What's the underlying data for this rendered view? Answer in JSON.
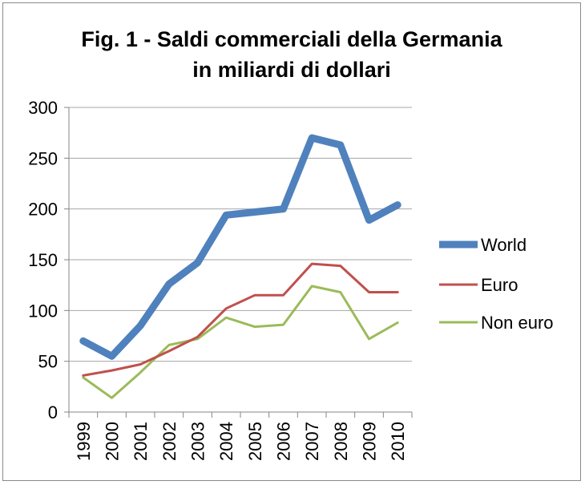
{
  "chart_data": {
    "type": "line",
    "title_lines": [
      "Fig. 1 - Saldi commerciali della Germania",
      "in miliardi di dollari"
    ],
    "categories": [
      "1999",
      "2000",
      "2001",
      "2002",
      "2003",
      "2004",
      "2005",
      "2006",
      "2007",
      "2008",
      "2009",
      "2010"
    ],
    "series": [
      {
        "name": "World",
        "color": "#4f81bd",
        "values": [
          70,
          55,
          85,
          126,
          147,
          194,
          197,
          200,
          270,
          263,
          189,
          204
        ]
      },
      {
        "name": "Euro",
        "color": "#c0504d",
        "values": [
          36,
          41,
          47,
          60,
          74,
          102,
          115,
          115,
          146,
          144,
          118,
          118
        ]
      },
      {
        "name": "Non euro",
        "color": "#9bbb59",
        "values": [
          34,
          14,
          39,
          66,
          72,
          93,
          84,
          86,
          124,
          118,
          72,
          88
        ]
      }
    ],
    "y_ticks": [
      0,
      50,
      100,
      150,
      200,
      250,
      300
    ],
    "ylim": [
      0,
      300
    ],
    "xlabel": "",
    "ylabel": "",
    "grid": true,
    "legend": "right"
  }
}
